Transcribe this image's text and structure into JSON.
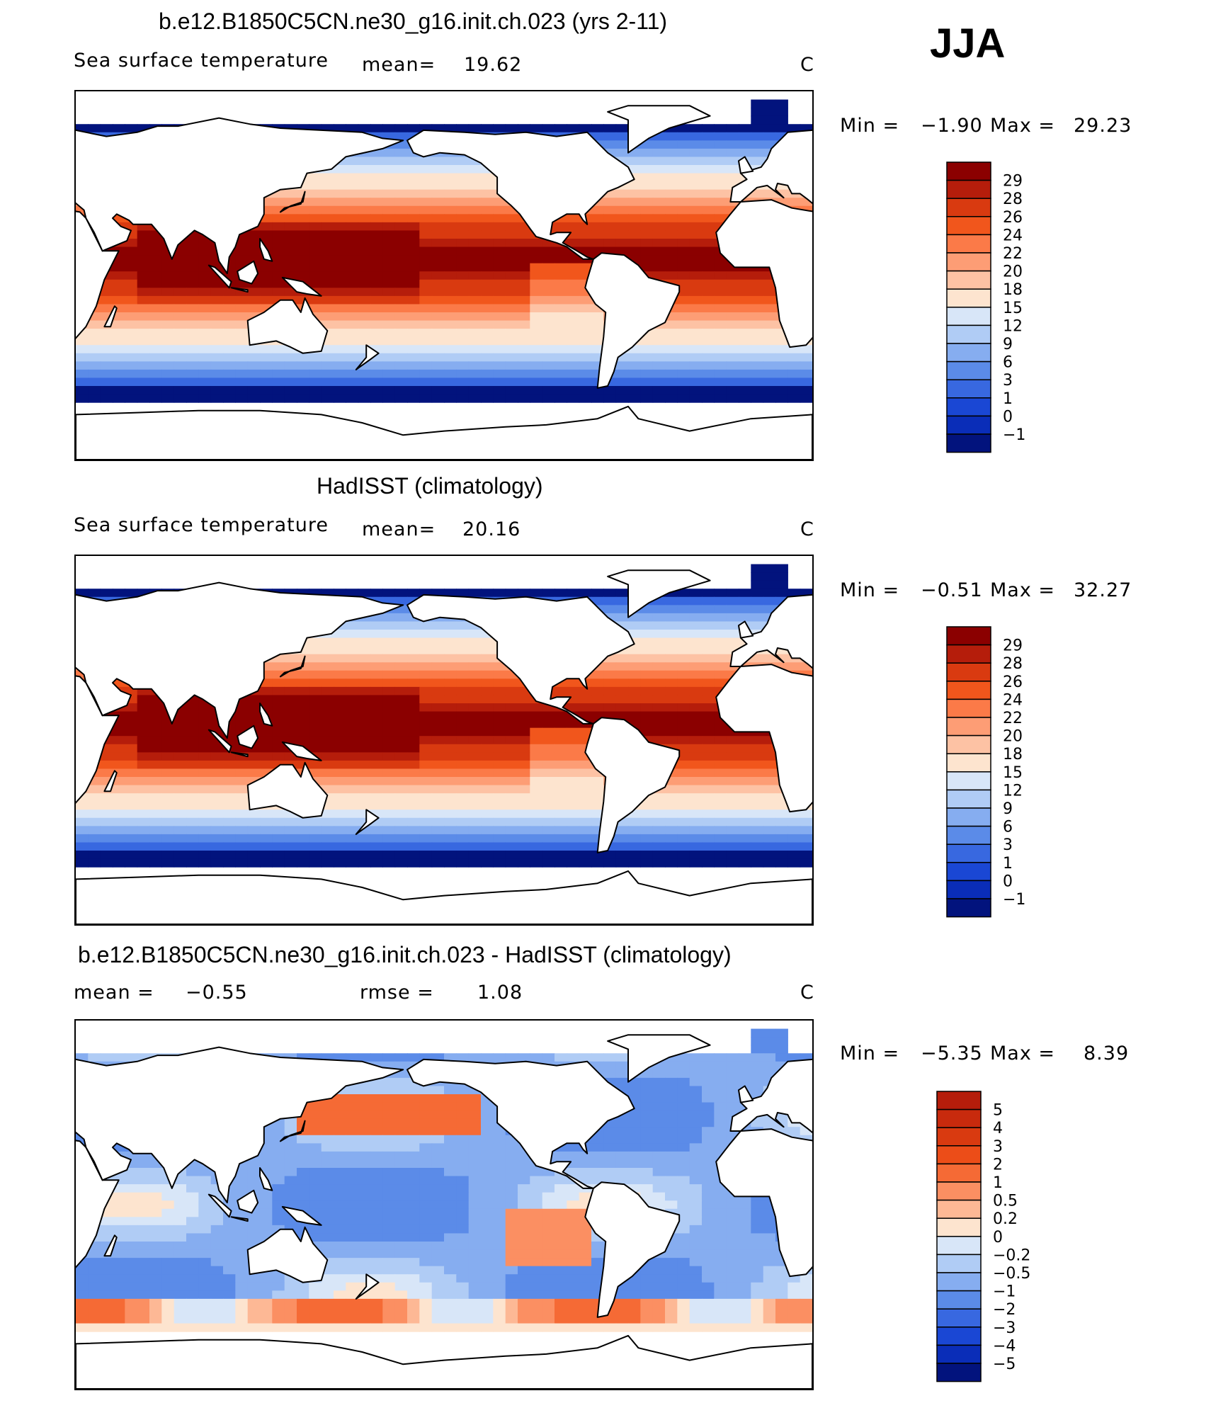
{
  "season": "JJA",
  "panels": [
    {
      "title": "b.e12.B1850C5CN.ne30_g16.init.ch.023 (yrs 2-11)",
      "left_label": "Sea surface temperature",
      "mean_label": "mean=",
      "mean_value": "19.62",
      "units": "C",
      "min_label": "Min =",
      "min_value": "−1.90",
      "max_label": "Max =",
      "max_value": "29.23",
      "kind": "sst"
    },
    {
      "title": "HadISST (climatology)",
      "left_label": "Sea surface temperature",
      "mean_label": "mean=",
      "mean_value": "20.16",
      "units": "C",
      "min_label": "Min =",
      "min_value": "−0.51",
      "max_label": "Max =",
      "max_value": "32.27",
      "kind": "sst"
    },
    {
      "title": "b.e12.B1850C5CN.ne30_g16.init.ch.023 - HadISST (climatology)",
      "left_label": "mean =",
      "mean_label": "",
      "mean_value": "−0.55",
      "rmse_label": "rmse =",
      "rmse_value": "1.08",
      "units": "C",
      "min_label": "Min =",
      "min_value": "−5.35",
      "max_label": "Max =",
      "max_value": "8.39",
      "kind": "diff"
    }
  ],
  "colorbars": {
    "sst": {
      "labels": [
        "29",
        "28",
        "26",
        "24",
        "22",
        "20",
        "18",
        "15",
        "12",
        "9",
        "6",
        "3",
        "1",
        "0",
        "−1"
      ],
      "colors": [
        "#8b0000",
        "#b51d0b",
        "#d93a10",
        "#f1561c",
        "#fb7a48",
        "#fd9d75",
        "#fdc2a4",
        "#fde4cf",
        "#d8e6f8",
        "#b0ccf5",
        "#86adf0",
        "#5b8be8",
        "#3868e0",
        "#1a47d4",
        "#0a2db8",
        "#02137d"
      ]
    },
    "diff": {
      "labels": [
        "5",
        "4",
        "3",
        "2",
        "1",
        "0.5",
        "0.2",
        "0",
        "−0.2",
        "−0.5",
        "−1",
        "−2",
        "−3",
        "−4",
        "−5"
      ],
      "colors": [
        "#b51d0b",
        "#c82a0d",
        "#d93a10",
        "#ec4d18",
        "#f56a35",
        "#fb8f62",
        "#fdb895",
        "#fde4cf",
        "#d8e6f8",
        "#b0ccf5",
        "#86adf0",
        "#5b8be8",
        "#3868e0",
        "#1a47d4",
        "#0a2db8",
        "#02137d"
      ]
    }
  },
  "chart_data": [
    {
      "type": "heatmap",
      "title": "b.e12.B1850C5CN.ne30_g16.init.ch.023 (yrs 2-11)",
      "variable": "Sea surface temperature",
      "units": "C",
      "mean": 19.62,
      "min": -1.9,
      "max": 29.23,
      "contour_levels": [
        -1,
        0,
        1,
        3,
        6,
        9,
        12,
        15,
        18,
        20,
        22,
        24,
        26,
        28,
        29
      ]
    },
    {
      "type": "heatmap",
      "title": "HadISST (climatology)",
      "variable": "Sea surface temperature",
      "units": "C",
      "mean": 20.16,
      "min": -0.51,
      "max": 32.27,
      "contour_levels": [
        -1,
        0,
        1,
        3,
        6,
        9,
        12,
        15,
        18,
        20,
        22,
        24,
        26,
        28,
        29
      ]
    },
    {
      "type": "heatmap",
      "title": "b.e12.B1850C5CN.ne30_g16.init.ch.023 - HadISST (climatology)",
      "units": "C",
      "mean": -0.55,
      "rmse": 1.08,
      "min": -5.35,
      "max": 8.39,
      "contour_levels": [
        -5,
        -4,
        -3,
        -2,
        -1,
        -0.5,
        -0.2,
        0,
        0.2,
        0.5,
        1,
        2,
        3,
        4,
        5
      ]
    }
  ]
}
